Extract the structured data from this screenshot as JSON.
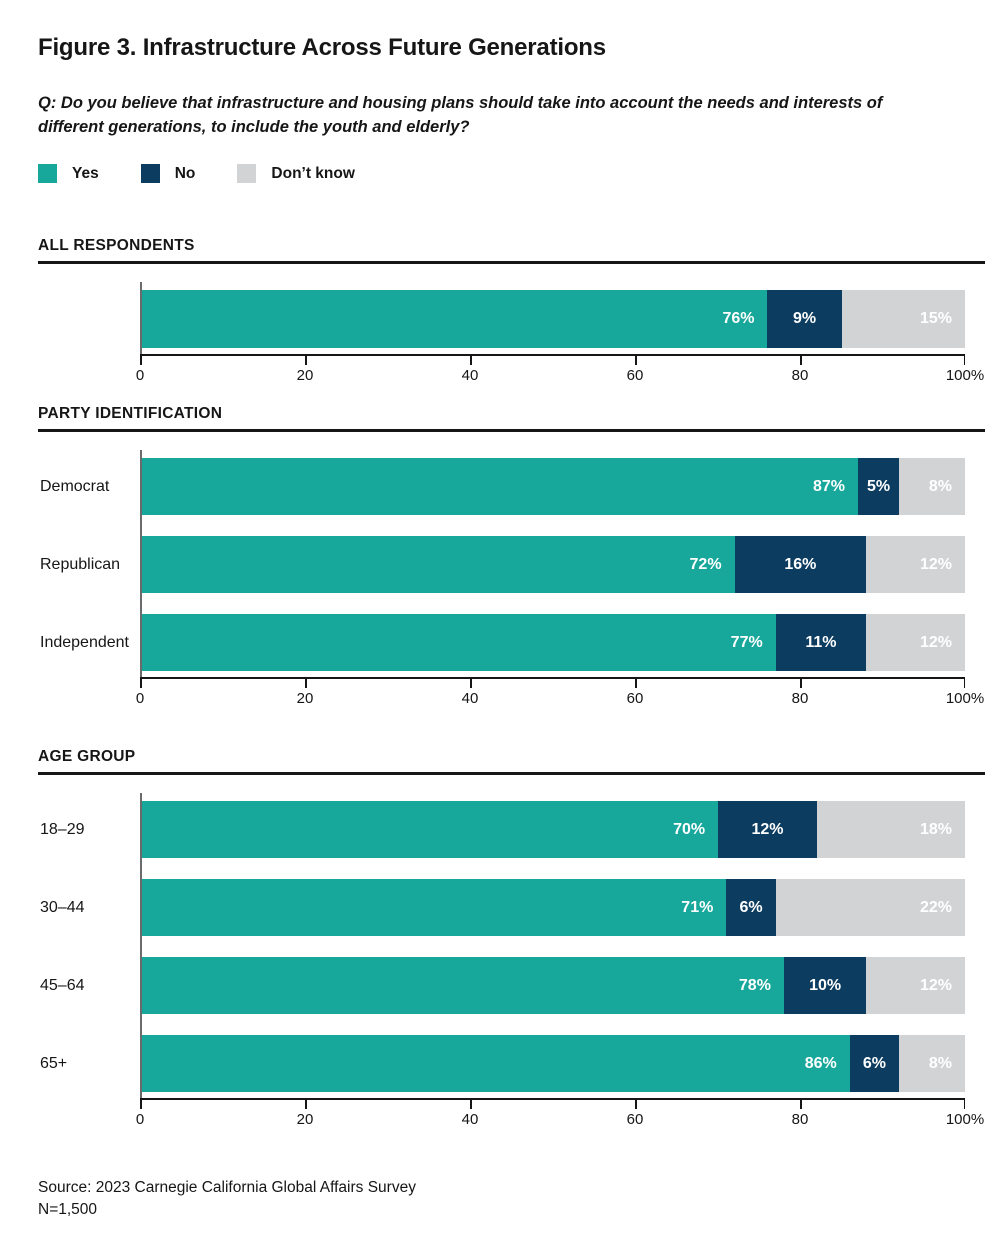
{
  "header": {
    "title": "Figure 3. Infrastructure Across Future Generations",
    "question": "Q: Do you believe that infrastructure and housing plans should take into account the needs and interests of different generations, to include the youth and elderly?"
  },
  "legend": {
    "items": [
      {
        "label": "Yes",
        "color": "#17A79B"
      },
      {
        "label": "No",
        "color": "#0C3C60"
      },
      {
        "label": "Don’t know",
        "color": "#D2D3D5"
      }
    ]
  },
  "chart_data": {
    "type": "bar",
    "variant": "stacked-horizontal",
    "unit": "percent",
    "axis": {
      "range": [
        0,
        100
      ],
      "tick_step": 20,
      "tick_labels": [
        "0",
        "20",
        "40",
        "60",
        "80",
        "100%"
      ]
    },
    "series": [
      {
        "name": "Yes",
        "key": "yes",
        "color": "#17A79B"
      },
      {
        "name": "No",
        "key": "no",
        "color": "#0C3C60"
      },
      {
        "name": "Don’t know",
        "key": "dont_know",
        "color": "#D2D3D5"
      }
    ],
    "sections": [
      {
        "title": "ALL RESPONDENTS",
        "rows": [
          {
            "label": "",
            "yes": 76,
            "no": 9,
            "dont_know": 15
          }
        ]
      },
      {
        "title": "PARTY IDENTIFICATION",
        "rows": [
          {
            "label": "Democrat",
            "yes": 87,
            "no": 5,
            "dont_know": 8
          },
          {
            "label": "Republican",
            "yes": 72,
            "no": 16,
            "dont_know": 12
          },
          {
            "label": "Independent",
            "yes": 77,
            "no": 11,
            "dont_know": 12
          }
        ]
      },
      {
        "title": "AGE GROUP",
        "rows": [
          {
            "label": "18–29",
            "yes": 70,
            "no": 12,
            "dont_know": 18
          },
          {
            "label": "30–44",
            "yes": 71,
            "no": 6,
            "dont_know": 22
          },
          {
            "label": "45–64",
            "yes": 78,
            "no": 10,
            "dont_know": 12
          },
          {
            "label": "65+",
            "yes": 86,
            "no": 6,
            "dont_know": 8
          }
        ]
      }
    ]
  },
  "footer": {
    "source": "Source: 2023 Carnegie California Global Affairs Survey",
    "sample": "N=1,500"
  }
}
